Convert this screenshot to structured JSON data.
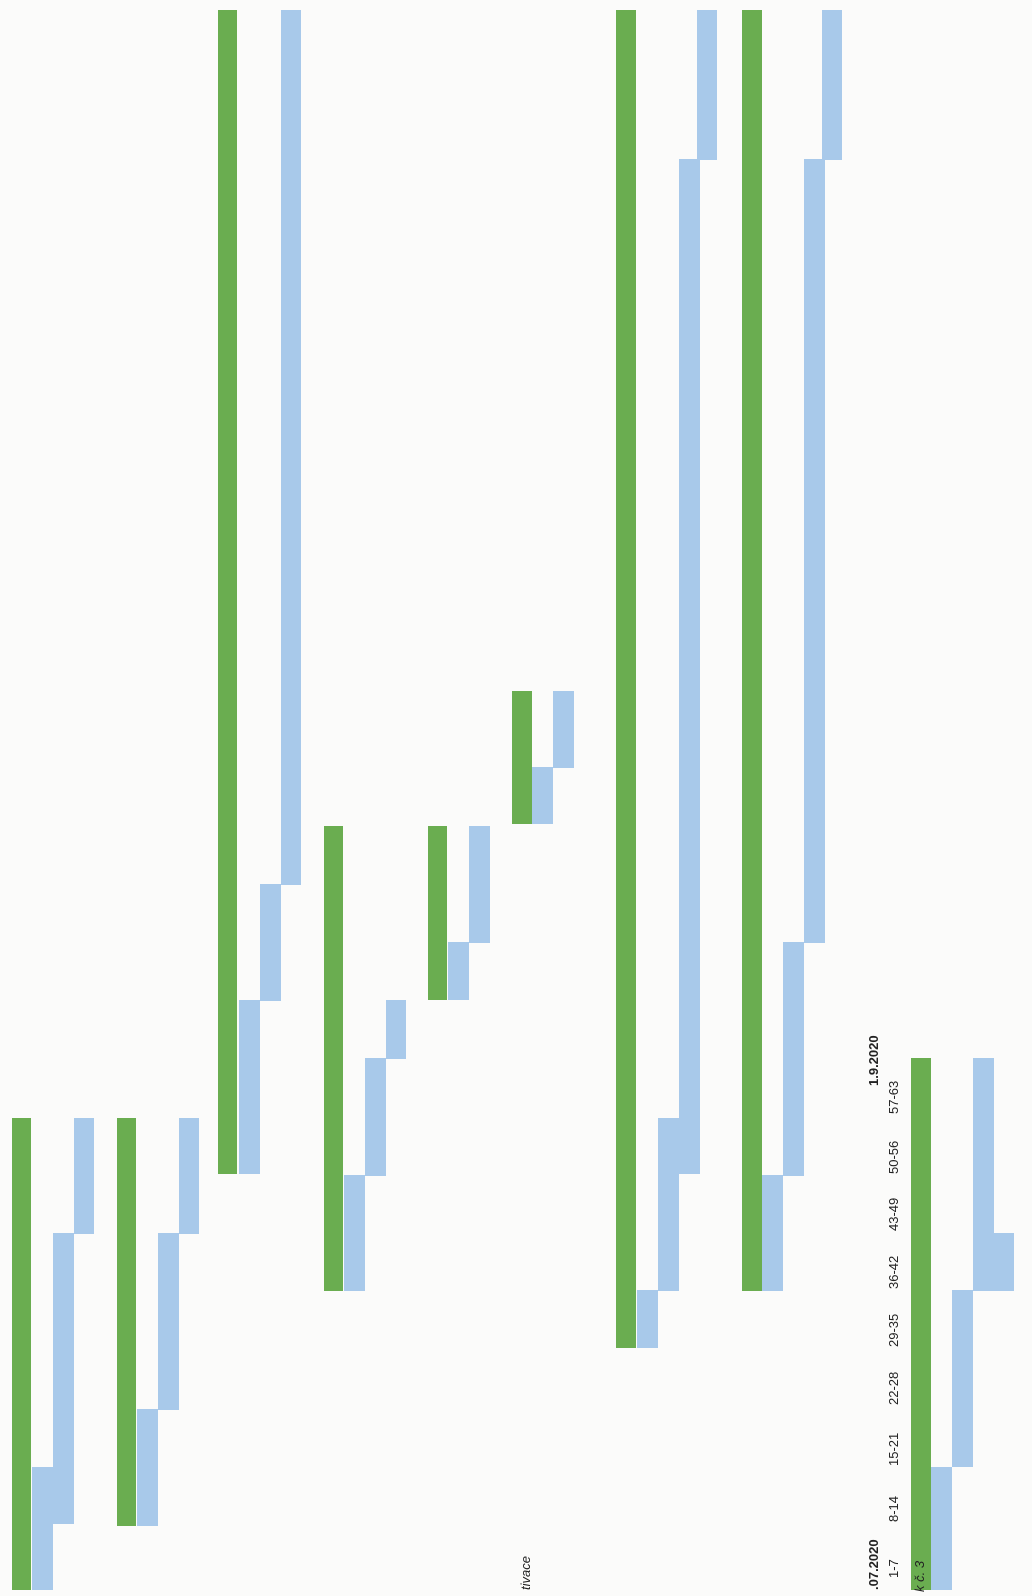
{
  "header": {
    "end_date": "1.9.2020",
    "start_date_partial": ".07.2020",
    "week_ranges": [
      "1-7",
      "8-14",
      "15-21",
      "22-28",
      "29-35",
      "36-42",
      "43-49",
      "50-56",
      "57-63"
    ],
    "row_label_partial": "k č. 3"
  },
  "fragment_label": "tivace",
  "colors": {
    "planned": "#6aad50",
    "actual": "#a8c9ea"
  }
}
